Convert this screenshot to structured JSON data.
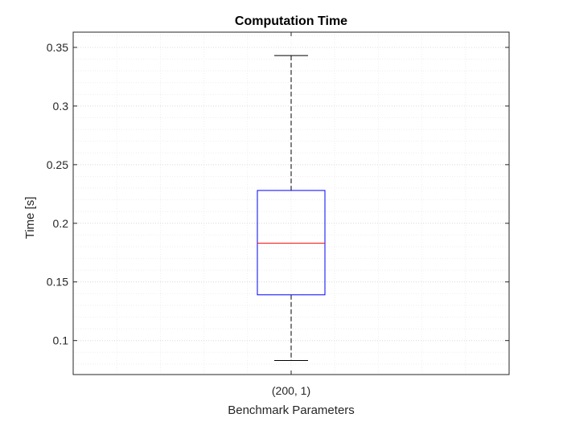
{
  "chart_data": {
    "type": "boxplot",
    "title": "Computation Time",
    "xlabel": "Benchmark Parameters",
    "ylabel": "Time [s]",
    "categories": [
      "(200, 1)"
    ],
    "boxes": [
      {
        "category": "(200, 1)",
        "whisker_low": 0.083,
        "q1": 0.139,
        "median": 0.183,
        "q3": 0.228,
        "whisker_high": 0.343
      }
    ],
    "ylim": [
      0.071,
      0.363
    ],
    "yticks": [
      0.1,
      0.15,
      0.2,
      0.25,
      0.3,
      0.35
    ],
    "ytick_labels": [
      "0.1",
      "0.15",
      "0.2",
      "0.25",
      "0.3",
      "0.35"
    ],
    "grid": true,
    "minor_grid": true,
    "colors": {
      "box": "#0000ff",
      "median": "#ff0000",
      "whisker": "#000000",
      "axes": "#262626",
      "grid": "#dcdcdc"
    }
  }
}
